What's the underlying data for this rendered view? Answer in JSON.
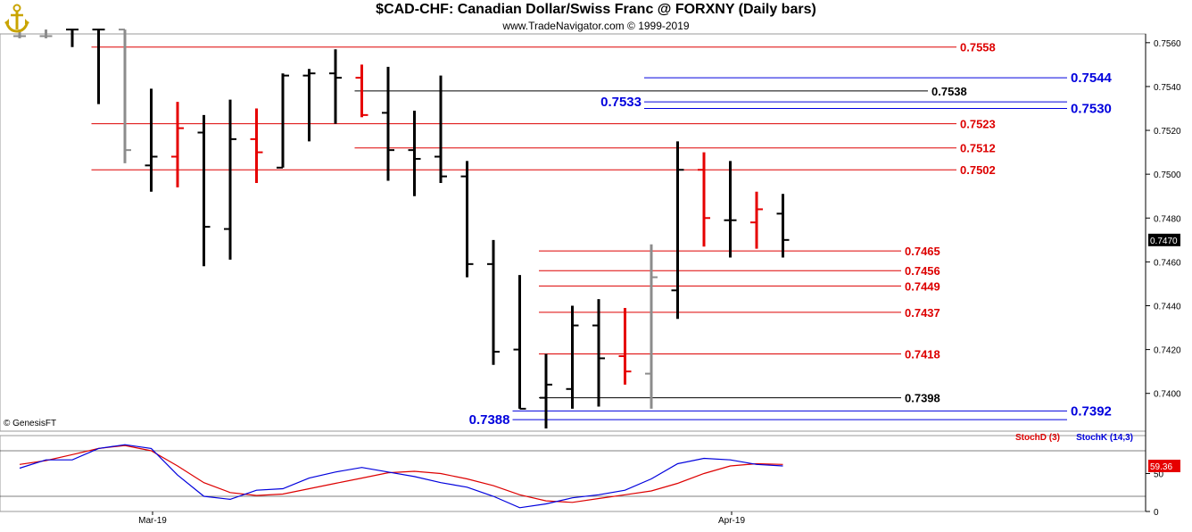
{
  "header": {
    "title": "$CAD-CHF:  Canadian Dollar/Swiss Franc @ FORXNY  (Daily bars)",
    "subtitle": "www.TradeNavigator.com © 1999-2019"
  },
  "credit": "© GenesisFT",
  "colors": {
    "up": "#000000",
    "down": "#e60000",
    "neutral": "#8c8c8c",
    "red_level": "#dd0000",
    "blue_level": "#0000dd",
    "black_level": "#000000",
    "stoch_d": "#dd0000",
    "stoch_k": "#0000dd",
    "grid_line": "#000000"
  },
  "chart_data": [
    {
      "type": "ohlc",
      "title": "$CAD-CHF:  Canadian Dollar/Swiss Franc @ FORXNY  (Daily bars)",
      "ylim": [
        0.7384,
        0.7564
      ],
      "y_ticks": [
        "0.7560",
        "0.7540",
        "0.7520",
        "0.7500",
        "0.7480",
        "0.7460",
        "0.7440",
        "0.7420",
        "0.7400"
      ],
      "last_price_label": "0.7470",
      "x_tick_labels": [
        "Mar-19",
        "Apr-19"
      ],
      "bars": [
        {
          "o": 0.7563,
          "h": 0.7566,
          "l": 0.7562,
          "c": 0.7563,
          "color": "neutral"
        },
        {
          "o": 0.7563,
          "h": 0.7566,
          "l": 0.7562,
          "c": 0.7563,
          "color": "neutral"
        },
        {
          "o": 0.7566,
          "h": 0.7566,
          "l": 0.7558,
          "c": 0.7566,
          "color": "up"
        },
        {
          "o": 0.7566,
          "h": 0.7566,
          "l": 0.7532,
          "c": 0.7566,
          "color": "up"
        },
        {
          "o": 0.7566,
          "h": 0.7566,
          "l": 0.7505,
          "c": 0.7511,
          "color": "neutral"
        },
        {
          "o": 0.7504,
          "h": 0.7539,
          "l": 0.7492,
          "c": 0.7508,
          "color": "up"
        },
        {
          "o": 0.7508,
          "h": 0.7533,
          "l": 0.7494,
          "c": 0.7521,
          "color": "down"
        },
        {
          "o": 0.7519,
          "h": 0.7527,
          "l": 0.7458,
          "c": 0.7476,
          "color": "up"
        },
        {
          "o": 0.7475,
          "h": 0.7534,
          "l": 0.7461,
          "c": 0.7516,
          "color": "up"
        },
        {
          "o": 0.7516,
          "h": 0.753,
          "l": 0.7496,
          "c": 0.751,
          "color": "down"
        },
        {
          "o": 0.7503,
          "h": 0.7546,
          "l": 0.7503,
          "c": 0.7545,
          "color": "up"
        },
        {
          "o": 0.7545,
          "h": 0.7548,
          "l": 0.7515,
          "c": 0.7546,
          "color": "up"
        },
        {
          "o": 0.7546,
          "h": 0.7557,
          "l": 0.7523,
          "c": 0.7544,
          "color": "up"
        },
        {
          "o": 0.7544,
          "h": 0.755,
          "l": 0.7526,
          "c": 0.7527,
          "color": "down"
        },
        {
          "o": 0.7528,
          "h": 0.7549,
          "l": 0.7497,
          "c": 0.7511,
          "color": "up"
        },
        {
          "o": 0.7511,
          "h": 0.7529,
          "l": 0.749,
          "c": 0.7507,
          "color": "up"
        },
        {
          "o": 0.7508,
          "h": 0.7545,
          "l": 0.7496,
          "c": 0.7499,
          "color": "up"
        },
        {
          "o": 0.7499,
          "h": 0.7506,
          "l": 0.7453,
          "c": 0.7459,
          "color": "up"
        },
        {
          "o": 0.7459,
          "h": 0.747,
          "l": 0.7413,
          "c": 0.7419,
          "color": "up"
        },
        {
          "o": 0.742,
          "h": 0.7454,
          "l": 0.7393,
          "c": 0.7393,
          "color": "up"
        },
        {
          "o": 0.7398,
          "h": 0.7418,
          "l": 0.7384,
          "c": 0.7404,
          "color": "up"
        },
        {
          "o": 0.7402,
          "h": 0.744,
          "l": 0.7393,
          "c": 0.7431,
          "color": "up"
        },
        {
          "o": 0.7431,
          "h": 0.7443,
          "l": 0.7394,
          "c": 0.7416,
          "color": "up"
        },
        {
          "o": 0.7417,
          "h": 0.7439,
          "l": 0.7404,
          "c": 0.741,
          "color": "down"
        },
        {
          "o": 0.7409,
          "h": 0.7468,
          "l": 0.7393,
          "c": 0.7453,
          "color": "neutral"
        },
        {
          "o": 0.7447,
          "h": 0.7515,
          "l": 0.7434,
          "c": 0.7502,
          "color": "up"
        },
        {
          "o": 0.7502,
          "h": 0.751,
          "l": 0.7467,
          "c": 0.748,
          "color": "down"
        },
        {
          "o": 0.7479,
          "h": 0.7506,
          "l": 0.7462,
          "c": 0.7479,
          "color": "up"
        },
        {
          "o": 0.7478,
          "h": 0.7492,
          "l": 0.7466,
          "c": 0.7484,
          "color": "down"
        },
        {
          "o": 0.7482,
          "h": 0.7491,
          "l": 0.7462,
          "c": 0.747,
          "color": "up"
        }
      ],
      "levels": [
        {
          "label": "0.7558",
          "value": 0.7558,
          "color": "red",
          "from_bar": 3,
          "label_side": "mid"
        },
        {
          "label": "0.7544",
          "value": 0.7544,
          "color": "blue",
          "from_bar": 24,
          "label_side": "right"
        },
        {
          "label": "0.7538",
          "value": 0.7538,
          "color": "black",
          "from_bar": 13,
          "label_side": "mid"
        },
        {
          "label": "0.7533",
          "value": 0.7533,
          "color": "blue",
          "from_bar": 24,
          "label_side": "left"
        },
        {
          "label": "0.7530",
          "value": 0.753,
          "color": "blue",
          "from_bar": 24,
          "label_side": "right"
        },
        {
          "label": "0.7523",
          "value": 0.7523,
          "color": "red",
          "from_bar": 3,
          "label_side": "mid"
        },
        {
          "label": "0.7512",
          "value": 0.7512,
          "color": "red",
          "from_bar": 13,
          "label_side": "mid"
        },
        {
          "label": "0.7502",
          "value": 0.7502,
          "color": "red",
          "from_bar": 3,
          "label_side": "mid"
        },
        {
          "label": "0.7465",
          "value": 0.7465,
          "color": "red",
          "from_bar": 20,
          "label_side": "near"
        },
        {
          "label": "0.7456",
          "value": 0.7456,
          "color": "red",
          "from_bar": 20,
          "label_side": "near"
        },
        {
          "label": "0.7449",
          "value": 0.7449,
          "color": "red",
          "from_bar": 20,
          "label_side": "near"
        },
        {
          "label": "0.7437",
          "value": 0.7437,
          "color": "red",
          "from_bar": 20,
          "label_side": "near"
        },
        {
          "label": "0.7418",
          "value": 0.7418,
          "color": "red",
          "from_bar": 20,
          "label_side": "near"
        },
        {
          "label": "0.7398",
          "value": 0.7398,
          "color": "black",
          "from_bar": 20,
          "label_side": "near"
        },
        {
          "label": "0.7392",
          "value": 0.7392,
          "color": "blue",
          "from_bar": 19,
          "label_side": "right"
        },
        {
          "label": "0.7388",
          "value": 0.7388,
          "color": "blue",
          "from_bar": 19,
          "label_side": "left"
        }
      ]
    },
    {
      "type": "line",
      "ylim": [
        0,
        100
      ],
      "y_ticks": [
        "50",
        "0"
      ],
      "reference_lines": [
        80,
        20
      ],
      "last_value_label": "59.36",
      "series": [
        {
          "name": "StochD (3)",
          "color": "red",
          "values": [
            62,
            67,
            75,
            83,
            87,
            80,
            60,
            38,
            25,
            21,
            23,
            30,
            37,
            44,
            51,
            53,
            50,
            43,
            34,
            22,
            14,
            12,
            17,
            22,
            27,
            37,
            50,
            60,
            63,
            62
          ]
        },
        {
          "name": "StochK (14,3)",
          "color": "blue",
          "values": [
            57,
            68,
            68,
            83,
            88,
            83,
            48,
            20,
            16,
            28,
            30,
            44,
            52,
            58,
            52,
            46,
            38,
            32,
            20,
            5,
            10,
            18,
            22,
            28,
            43,
            63,
            70,
            68,
            62,
            60
          ]
        }
      ]
    }
  ]
}
